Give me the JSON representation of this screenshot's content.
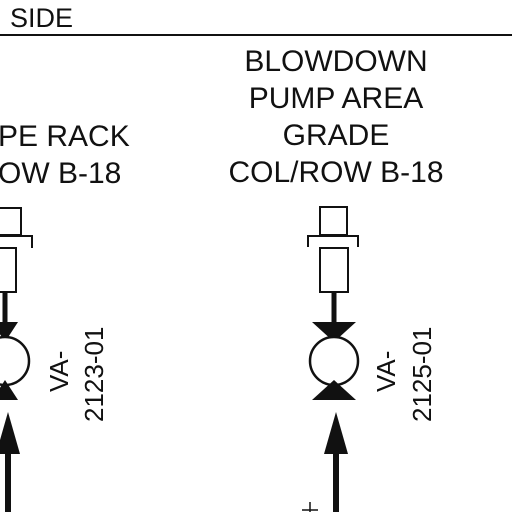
{
  "header": {
    "side_label": "SIDE"
  },
  "left_location": {
    "line1": "PE RACK",
    "line2": "OW B-18"
  },
  "right_location": {
    "line1": "BLOWDOWN",
    "line2": "PUMP AREA",
    "line3": "GRADE",
    "line4": "COL/ROW B-18"
  },
  "left_valve": {
    "tag_line1": "VA-",
    "tag_line2": "2123-01"
  },
  "right_valve": {
    "tag_line1": "VA-",
    "tag_line2": "2125-01"
  },
  "colors": {
    "ink": "#111111",
    "paper": "#ffffff"
  }
}
